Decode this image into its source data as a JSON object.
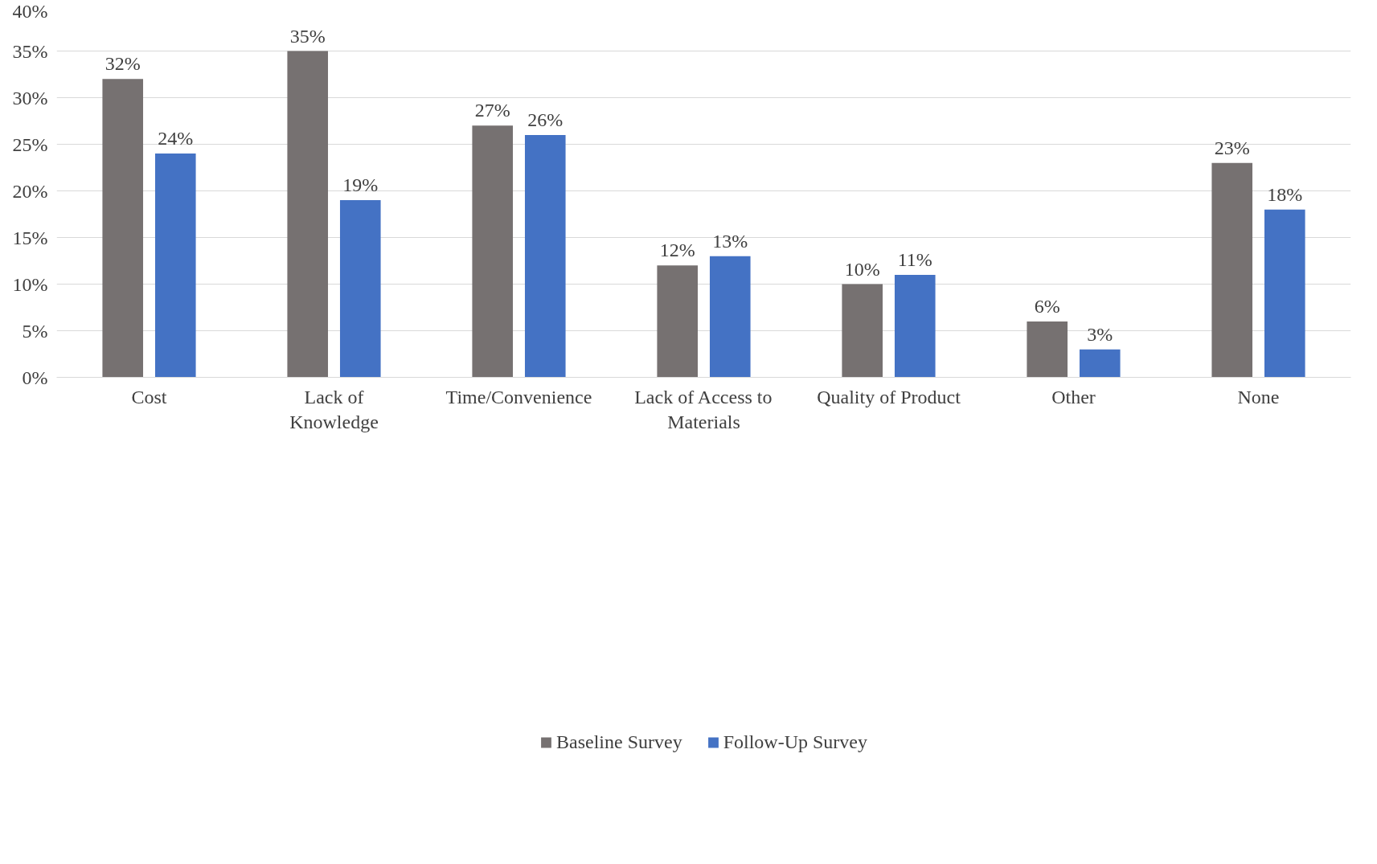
{
  "chart_data": {
    "type": "bar",
    "categories": [
      "Cost",
      "Lack of\nKnowledge",
      "Time/Convenience",
      "Lack of Access to\nMaterials",
      "Quality of Product",
      "Other",
      "None"
    ],
    "series": [
      {
        "name": "Baseline Survey",
        "color": "#767171",
        "values": [
          32,
          35,
          27,
          12,
          10,
          6,
          23
        ],
        "value_labels": [
          "32%",
          "35%",
          "27%",
          "12%",
          "10%",
          "6%",
          "23%"
        ]
      },
      {
        "name": "Follow-Up Survey",
        "color": "#4472c4",
        "values": [
          24,
          19,
          26,
          13,
          11,
          3,
          18
        ],
        "value_labels": [
          "24%",
          "19%",
          "26%",
          "13%",
          "11%",
          "3%",
          "18%"
        ]
      }
    ],
    "ylim": [
      0,
      40
    ],
    "yticks": [
      {
        "value": 0,
        "label": "0%"
      },
      {
        "value": 5,
        "label": "5%"
      },
      {
        "value": 10,
        "label": "10%"
      },
      {
        "value": 15,
        "label": "15%"
      },
      {
        "value": 20,
        "label": "20%"
      },
      {
        "value": 25,
        "label": "25%"
      },
      {
        "value": 30,
        "label": "30%"
      },
      {
        "value": 35,
        "label": "35%"
      },
      {
        "value": 40,
        "label": "40%"
      }
    ],
    "grid": "y",
    "legend": "bottom"
  }
}
